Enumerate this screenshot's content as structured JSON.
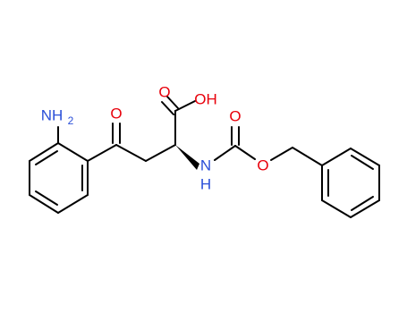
{
  "atoms": [
    {
      "label": "NH",
      "subscript": "2"
    },
    {
      "label": "O"
    },
    {
      "label": "O"
    },
    {
      "label": "OH"
    },
    {
      "label": "N",
      "hydrogen": "H"
    },
    {
      "label": "O"
    },
    {
      "label": "O"
    }
  ]
}
